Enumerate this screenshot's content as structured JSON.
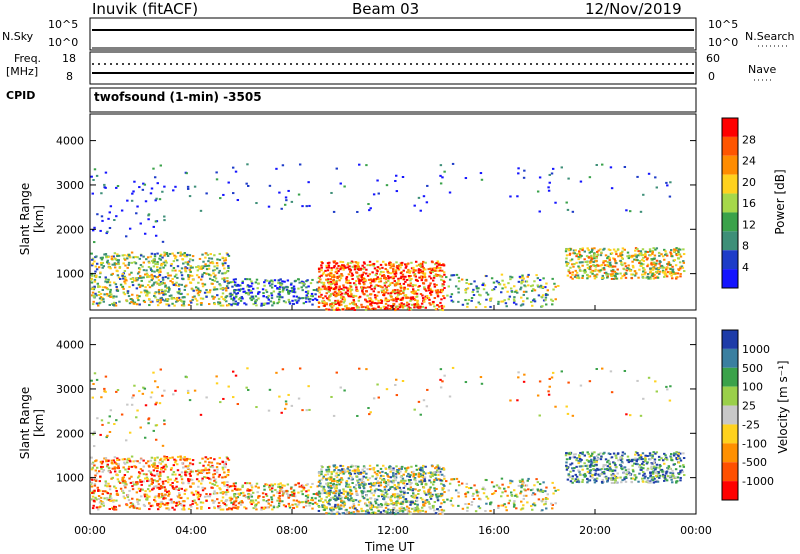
{
  "header": {
    "station": "Inuvik (fitACF)",
    "beam": "Beam 03",
    "date": "12/Nov/2019"
  },
  "sidepanel": {
    "nsky": "N.Sky",
    "nsearch": "N.Search",
    "freq": "Freq.",
    "mhz": "[MHz]",
    "cpid": "CPID",
    "nave": "Nave",
    "nsky_ticks": [
      "10^5",
      "10^0"
    ],
    "nsearch_ticks": [
      "10^5",
      "10^0"
    ],
    "freq_ticks": [
      "18",
      "8"
    ],
    "nave_ticks": [
      "60",
      "0"
    ],
    "cpid_text": "twofsound (1-min) -3505"
  },
  "axes": {
    "xlabel": "Time UT",
    "x_ticks": [
      "00:00",
      "04:00",
      "08:00",
      "12:00",
      "16:00",
      "20:00",
      "00:00"
    ],
    "ylabel": "Slant Range [km]",
    "y_ticks": [
      "4000",
      "3000",
      "2000",
      "1000"
    ]
  },
  "chart_data": [
    {
      "type": "heatmap",
      "title": "",
      "xlabel": "Time UT",
      "ylabel": "Slant Range [km]",
      "xlim": [
        "00:00",
        "24:00"
      ],
      "ylim": [
        180,
        4600
      ],
      "colorbar": {
        "label": "Power [dB]",
        "ticks": [
          "28",
          "24",
          "20",
          "16",
          "12",
          "8",
          "4"
        ],
        "colors": [
          "#ff0000",
          "#ff5500",
          "#ff8c00",
          "#ffd21e",
          "#a6d84a",
          "#3aa24a",
          "#3e8f78",
          "#1e3cc8",
          "#1414ff"
        ]
      }
    },
    {
      "type": "heatmap",
      "title": "",
      "xlabel": "Time UT",
      "ylabel": "Slant Range [km]",
      "xlim": [
        "00:00",
        "24:00"
      ],
      "ylim": [
        180,
        4600
      ],
      "colorbar": {
        "label": "Velocity [m s⁻¹]",
        "ticks": [
          "1000",
          "500",
          "100",
          "25",
          "-25",
          "-100",
          "-500",
          "-1000"
        ],
        "colors": [
          "#1e3ca8",
          "#3a7fa0",
          "#3aa24a",
          "#9ad04a",
          "#c8c8c8",
          "#ffd21e",
          "#ff9000",
          "#ff5000",
          "#ff0000"
        ]
      }
    }
  ]
}
